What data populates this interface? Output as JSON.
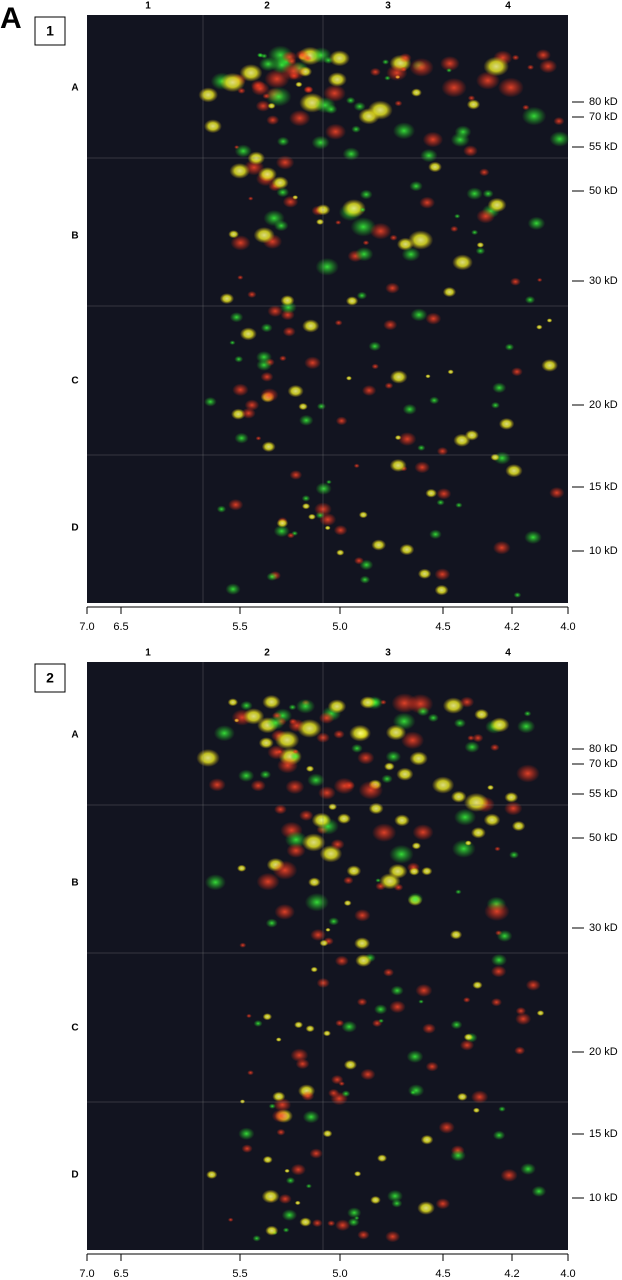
{
  "figure_label": "A",
  "panels": [
    {
      "label": "1",
      "columns": [
        "1",
        "2",
        "3",
        "4"
      ],
      "rows": [
        "A",
        "B",
        "C",
        "D"
      ],
      "mw_markers": [
        "80 kD",
        "70 kD",
        "55 kD",
        "50 kD",
        "30 kD",
        "20 kD",
        "15 kD",
        "10 kD"
      ],
      "ph_ticks": [
        "7.0",
        "6.5",
        "5.5",
        "5.0",
        "4.5",
        "4.2",
        "4.0"
      ]
    },
    {
      "label": "2",
      "columns": [
        "1",
        "2",
        "3",
        "4"
      ],
      "rows": [
        "A",
        "B",
        "C",
        "D"
      ],
      "mw_markers": [
        "80 kD",
        "70 kD",
        "55 kD",
        "50 kD",
        "30 kD",
        "20 kD",
        "15 kD",
        "10 kD"
      ],
      "ph_ticks": [
        "7.0",
        "6.5",
        "5.5",
        "5.0",
        "4.5",
        "4.2",
        "4.0"
      ]
    }
  ]
}
